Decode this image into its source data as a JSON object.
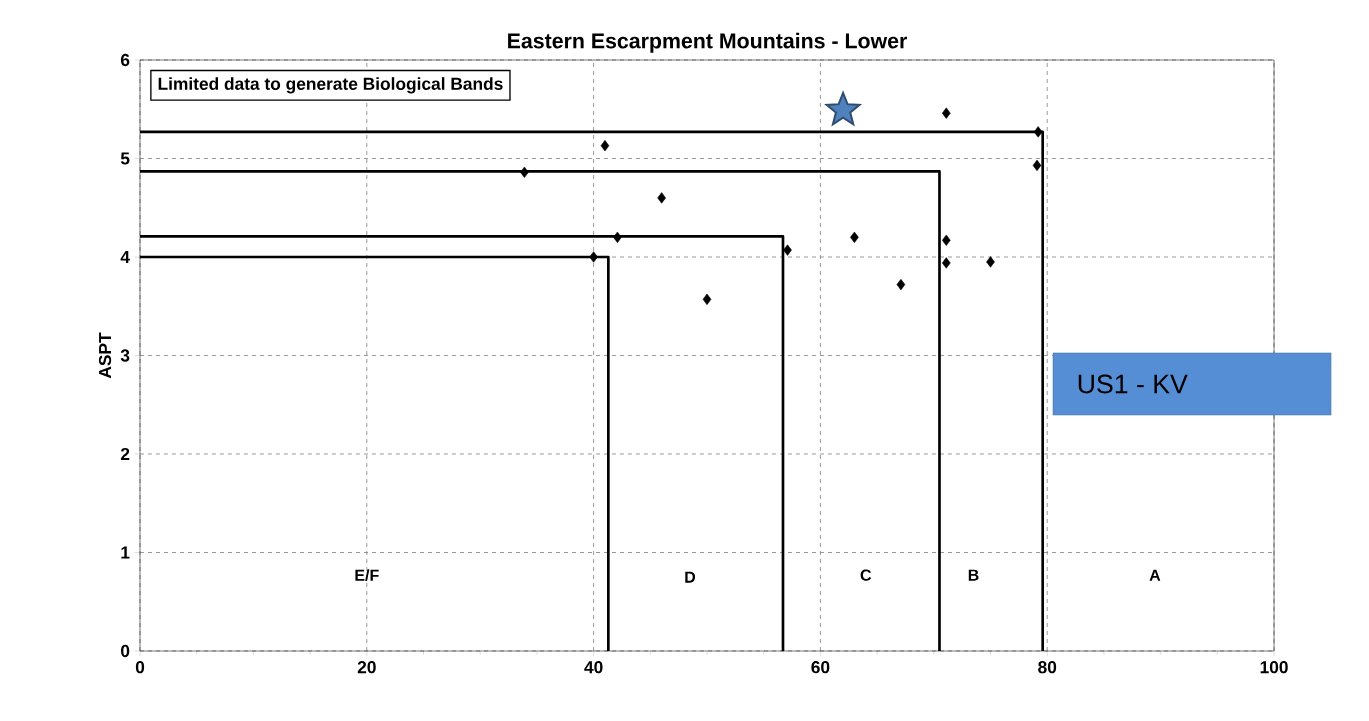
{
  "chart_data": {
    "type": "scatter",
    "title": "Eastern Escarpment Mountains - Lower",
    "ylabel": "ASPT",
    "xlim": [
      0,
      100
    ],
    "ylim": [
      0,
      6
    ],
    "xticks": [
      0,
      20,
      40,
      60,
      80,
      100
    ],
    "yticks": [
      0,
      1,
      2,
      3,
      4,
      5,
      6
    ],
    "grid": true,
    "series": [
      {
        "type": "scatter",
        "marker": "diamond",
        "color": "#000000",
        "x": [
          33.9,
          41.0,
          40.0,
          42.1,
          46.0,
          50.0,
          57.1,
          63.0,
          67.1,
          71.1,
          71.1,
          71.1,
          75.0,
          79.2,
          79.1
        ],
        "values": [
          4.86,
          5.13,
          4.0,
          4.2,
          4.6,
          3.57,
          4.07,
          4.2,
          3.72,
          5.46,
          4.17,
          3.94,
          3.95,
          5.27,
          4.93
        ]
      },
      {
        "type": "scatter",
        "marker": "star",
        "color": "#4f81bd",
        "x": [
          62.0
        ],
        "values": [
          5.49
        ]
      },
      {
        "type": "line",
        "marker": "none",
        "color": "#000000",
        "x": [
          0,
          41.3,
          41.3
        ],
        "values": [
          4.0,
          4.0,
          0
        ]
      },
      {
        "type": "line",
        "marker": "none",
        "color": "#000000",
        "x": [
          0,
          56.7,
          56.7
        ],
        "values": [
          4.21,
          4.21,
          0
        ]
      },
      {
        "type": "line",
        "marker": "none",
        "color": "#000000",
        "x": [
          0,
          70.5,
          70.5
        ],
        "values": [
          4.87,
          4.87,
          0
        ]
      },
      {
        "type": "line",
        "marker": "none",
        "color": "#000000",
        "x": [
          0,
          79.6,
          79.6
        ],
        "values": [
          5.27,
          5.27,
          0
        ]
      }
    ],
    "annotations": [
      "Limited data to generate Biological Bands",
      "US1 - KV",
      "E/F",
      "D",
      "C",
      "B",
      "A"
    ]
  }
}
